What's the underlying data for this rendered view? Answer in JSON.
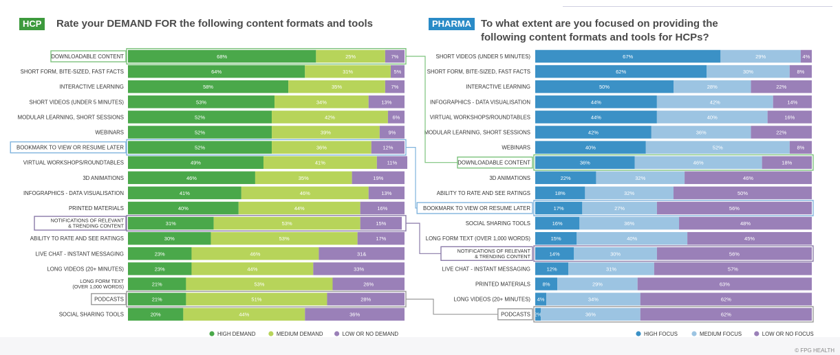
{
  "left": {
    "badge": "HCP",
    "title": "Rate your DEMAND FOR the following content formats and tools",
    "colors": {
      "high": "#4aa84a",
      "medium": "#b7d45a",
      "low": "#9a80b8",
      "badge": "#3d9a3d"
    },
    "legend": [
      "HIGH DEMAND",
      "MEDIUM DEMAND",
      "LOW OR NO DEMAND"
    ],
    "chart_data": {
      "type": "bar",
      "orientation": "horizontal-stacked",
      "categories": [
        "DOWNLOADABLE CONTENT",
        "SHORT FORM, BITE-SIZED, FAST FACTS",
        "INTERACTIVE LEARNING",
        "SHORT VIDEOS (UNDER 5 MINUTES)",
        "MODULAR LEARNING, SHORT SESSIONS",
        "WEBINARS",
        "BOOKMARK TO VIEW OR RESUME LATER",
        "VIRTUAL WORKSHOPS/ROUNDTABLES",
        "3D ANIMATIONS",
        "INFOGRAPHICS - DATA VISUALISATION",
        "PRINTED MATERIALS",
        "NOTIFICATIONS OF RELEVANT\n& TRENDING CONTENT",
        "ABILITY TO RATE AND SEE RATINGS",
        "LIVE CHAT - INSTANT MESSAGING",
        "LONG VIDEOS (20+ MINUTES)",
        "LONG FORM TEXT\n(OVER 1,000 WORDS)",
        "PODCASTS",
        "SOCIAL SHARING TOOLS"
      ],
      "series": [
        {
          "name": "HIGH DEMAND",
          "values": [
            68,
            64,
            58,
            53,
            52,
            52,
            52,
            49,
            46,
            41,
            40,
            31,
            30,
            23,
            23,
            21,
            21,
            20
          ]
        },
        {
          "name": "MEDIUM DEMAND",
          "values": [
            25,
            31,
            35,
            34,
            42,
            39,
            36,
            41,
            35,
            46,
            44,
            53,
            53,
            46,
            44,
            53,
            51,
            44
          ]
        },
        {
          "name": "LOW OR NO DEMAND",
          "values": [
            7,
            5,
            7,
            13,
            6,
            9,
            12,
            11,
            19,
            13,
            16,
            15,
            17,
            31,
            33,
            26,
            28,
            36
          ]
        }
      ],
      "value_labels": [
        [
          "68%",
          "25%",
          "7%"
        ],
        [
          "64%",
          "31%",
          "5%"
        ],
        [
          "58%",
          "35%",
          "7%"
        ],
        [
          "53%",
          "34%",
          "13%"
        ],
        [
          "52%",
          "42%",
          "6%"
        ],
        [
          "52%",
          "39%",
          "9%"
        ],
        [
          "52%",
          "36%",
          "12%"
        ],
        [
          "49%",
          "41%",
          "11%"
        ],
        [
          "46%",
          "35%",
          "19%"
        ],
        [
          "41%",
          "46%",
          "13%"
        ],
        [
          "40%",
          "44%",
          "16%"
        ],
        [
          "31%",
          "53%",
          "15%"
        ],
        [
          "30%",
          "53%",
          "17%"
        ],
        [
          "23%",
          "46%",
          "31&"
        ],
        [
          "23%",
          "44%",
          "33%"
        ],
        [
          "21%",
          "53%",
          "26%"
        ],
        [
          "21%",
          "51%",
          "28%"
        ],
        [
          "20%",
          "44%",
          "36%"
        ]
      ],
      "highlighted": {
        "DOWNLOADABLE CONTENT": "green",
        "BOOKMARK TO VIEW OR RESUME LATER": "blue",
        "NOTIFICATIONS OF RELEVANT\n& TRENDING CONTENT": "purple",
        "PODCASTS": "gray"
      },
      "xlim": [
        0,
        100
      ]
    }
  },
  "right": {
    "badge": "PHARMA",
    "title_line1": "To what extent are you focused on providing the",
    "title_line2": "following content formats and tools for HCPs?",
    "colors": {
      "high": "#3b91c6",
      "medium": "#9cc4e2",
      "low": "#9a80b8",
      "badge": "#2a8bc7"
    },
    "legend": [
      "HIGH FOCUS",
      "MEDIUM FOCUS",
      "LOW OR NO FOCUS"
    ],
    "chart_data": {
      "type": "bar",
      "orientation": "horizontal-stacked",
      "categories": [
        "SHORT VIDEOS (UNDER 5 MINUTES)",
        "SHORT FORM, BITE-SIZED, FAST FACTS",
        "INTERACTIVE LEARNING",
        "INFOGRAPHICS - DATA VISUALISATION",
        "VIRTUAL WORKSHOPS/ROUNDTABLES",
        "MODULAR LEARNING, SHORT SESSIONS",
        "WEBINARS",
        "DOWNLOADABLE CONTENT",
        "3D ANIMATIONS",
        "ABILITY TO RATE AND SEE RATINGS",
        "BOOKMARK TO VIEW OR RESUME LATER",
        "SOCIAL SHARING TOOLS",
        "LONG FORM TEXT (OVER 1,000 WORDS)",
        "NOTIFICATIONS OF RELEVANT\n& TRENDING CONTENT",
        "LIVE CHAT - INSTANT MESSAGING",
        "PRINTED MATERIALS",
        "LONG VIDEOS (20+ MINUTES)",
        "PODCASTS"
      ],
      "series": [
        {
          "name": "HIGH FOCUS",
          "values": [
            67,
            62,
            50,
            44,
            44,
            42,
            40,
            36,
            22,
            18,
            17,
            16,
            15,
            14,
            12,
            8,
            4,
            2
          ]
        },
        {
          "name": "MEDIUM FOCUS",
          "values": [
            29,
            30,
            28,
            42,
            40,
            36,
            52,
            46,
            32,
            32,
            27,
            36,
            40,
            30,
            31,
            29,
            34,
            36
          ]
        },
        {
          "name": "LOW OR NO FOCUS",
          "values": [
            4,
            8,
            22,
            14,
            16,
            22,
            8,
            18,
            46,
            50,
            56,
            48,
            45,
            56,
            57,
            63,
            62,
            62
          ]
        }
      ],
      "value_labels": [
        [
          "67%",
          "29%",
          "4%"
        ],
        [
          "62%",
          "30%",
          "8%"
        ],
        [
          "50%",
          "28%",
          "22%"
        ],
        [
          "44%",
          "42%",
          "14%"
        ],
        [
          "44%",
          "40%",
          "16%"
        ],
        [
          "42%",
          "36%",
          "22%"
        ],
        [
          "40%",
          "52%",
          "8%"
        ],
        [
          "36%",
          "46%",
          "18%"
        ],
        [
          "22%",
          "32%",
          "46%"
        ],
        [
          "18%",
          "32%",
          "50%"
        ],
        [
          "17%",
          "27%",
          "56%"
        ],
        [
          "16%",
          "36%",
          "48%"
        ],
        [
          "15%",
          "40%",
          "45%"
        ],
        [
          "14%",
          "30%",
          "56%"
        ],
        [
          "12%",
          "31%",
          "57%"
        ],
        [
          "8%",
          "29%",
          "63%"
        ],
        [
          "4%",
          "34%",
          "62%"
        ],
        [
          "2%",
          "36%",
          "62%"
        ]
      ],
      "highlighted": {
        "DOWNLOADABLE CONTENT": "green",
        "BOOKMARK TO VIEW OR RESUME LATER": "blue",
        "NOTIFICATIONS OF RELEVANT\n& TRENDING CONTENT": "purple",
        "PODCASTS": "gray"
      },
      "xlim": [
        0,
        100
      ]
    }
  },
  "highlight_colors": {
    "green": "#7cc27c",
    "blue": "#7fb3dd",
    "purple": "#8a7aa8",
    "gray": "#9a9a9a"
  },
  "credit": "© FPG HEALTH"
}
